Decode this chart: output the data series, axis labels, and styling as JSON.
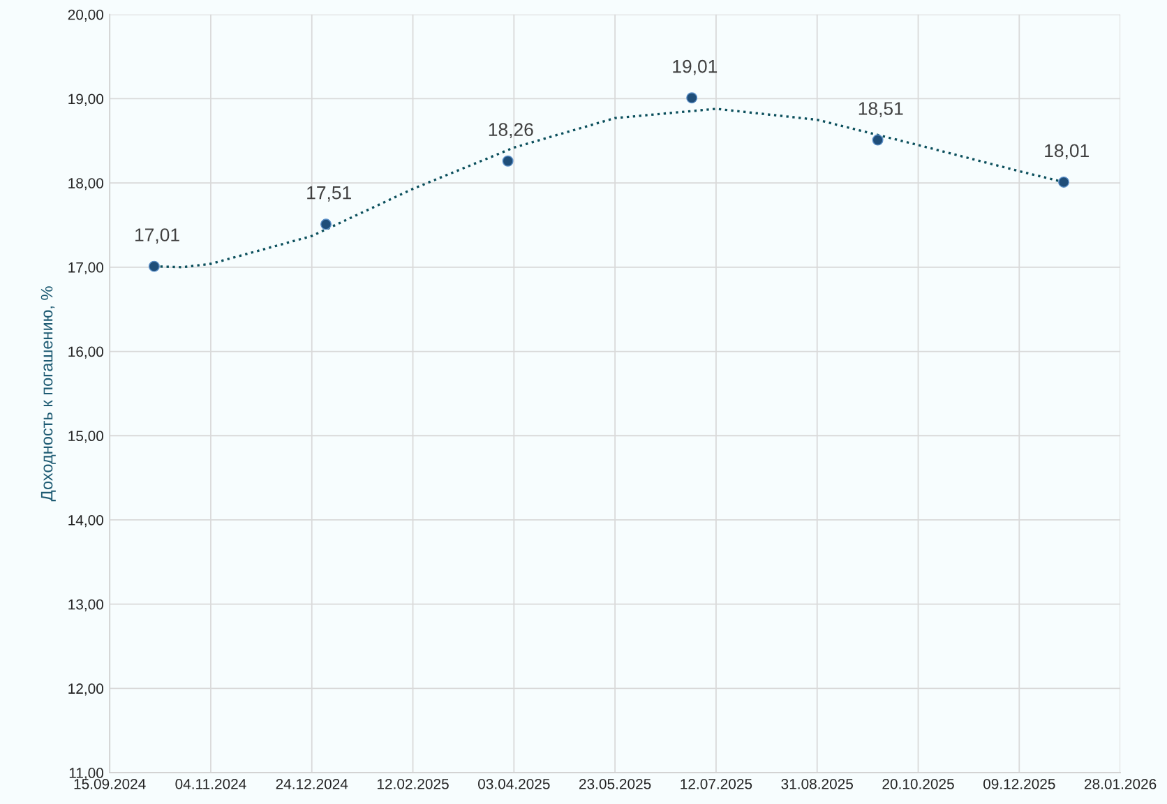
{
  "chart_data": {
    "type": "scatter",
    "ylabel": "Доходность к погашению, %",
    "xlim": [
      "2024-09-15",
      "2026-01-28"
    ],
    "xticks": [
      {
        "value": "2024-09-15",
        "label": "15.09.2024"
      },
      {
        "value": "2024-11-04",
        "label": "04.11.2024"
      },
      {
        "value": "2024-12-24",
        "label": "24.12.2024"
      },
      {
        "value": "2025-02-12",
        "label": "12.02.2025"
      },
      {
        "value": "2025-04-03",
        "label": "03.04.2025"
      },
      {
        "value": "2025-05-23",
        "label": "23.05.2025"
      },
      {
        "value": "2025-07-12",
        "label": "12.07.2025"
      },
      {
        "value": "2025-08-31",
        "label": "31.08.2025"
      },
      {
        "value": "2025-10-20",
        "label": "20.10.2025"
      },
      {
        "value": "2025-12-09",
        "label": "09.12.2025"
      },
      {
        "value": "2026-01-28",
        "label": "28.01.2026"
      }
    ],
    "ylim": [
      11,
      20
    ],
    "yticks": [
      {
        "value": 11,
        "label": "11,00"
      },
      {
        "value": 12,
        "label": "12,00"
      },
      {
        "value": 13,
        "label": "13,00"
      },
      {
        "value": 14,
        "label": "14,00"
      },
      {
        "value": 15,
        "label": "15,00"
      },
      {
        "value": 16,
        "label": "16,00"
      },
      {
        "value": 17,
        "label": "17,00"
      },
      {
        "value": 18,
        "label": "18,00"
      },
      {
        "value": 19,
        "label": "19,00"
      },
      {
        "value": 20,
        "label": "20,00"
      }
    ],
    "grid": true,
    "series": [
      {
        "type": "line",
        "color": "#0b4f5c",
        "line_style": "dotted",
        "marker": "none",
        "x": [
          "2024-10-07",
          "2024-10-21",
          "2024-11-04",
          "2024-12-24",
          "2025-02-12",
          "2025-04-03",
          "2025-05-23",
          "2025-07-12",
          "2025-08-31",
          "2025-10-20",
          "2025-12-09",
          "2025-12-31"
        ],
        "values": [
          17.01,
          17.0,
          17.04,
          17.37,
          17.93,
          18.42,
          18.77,
          18.88,
          18.75,
          18.45,
          18.14,
          18.01
        ]
      },
      {
        "color": "#1f4e79",
        "marker": "circle",
        "x": [
          "2024-10-07",
          "2024-12-31",
          "2025-03-31",
          "2025-06-30",
          "2025-09-30",
          "2025-12-31"
        ],
        "values": [
          17.01,
          17.51,
          18.26,
          19.01,
          18.51,
          18.01
        ],
        "value_labels": [
          "17,01",
          "17,51",
          "18,26",
          "19,01",
          "18,51",
          "18,01"
        ]
      }
    ]
  }
}
